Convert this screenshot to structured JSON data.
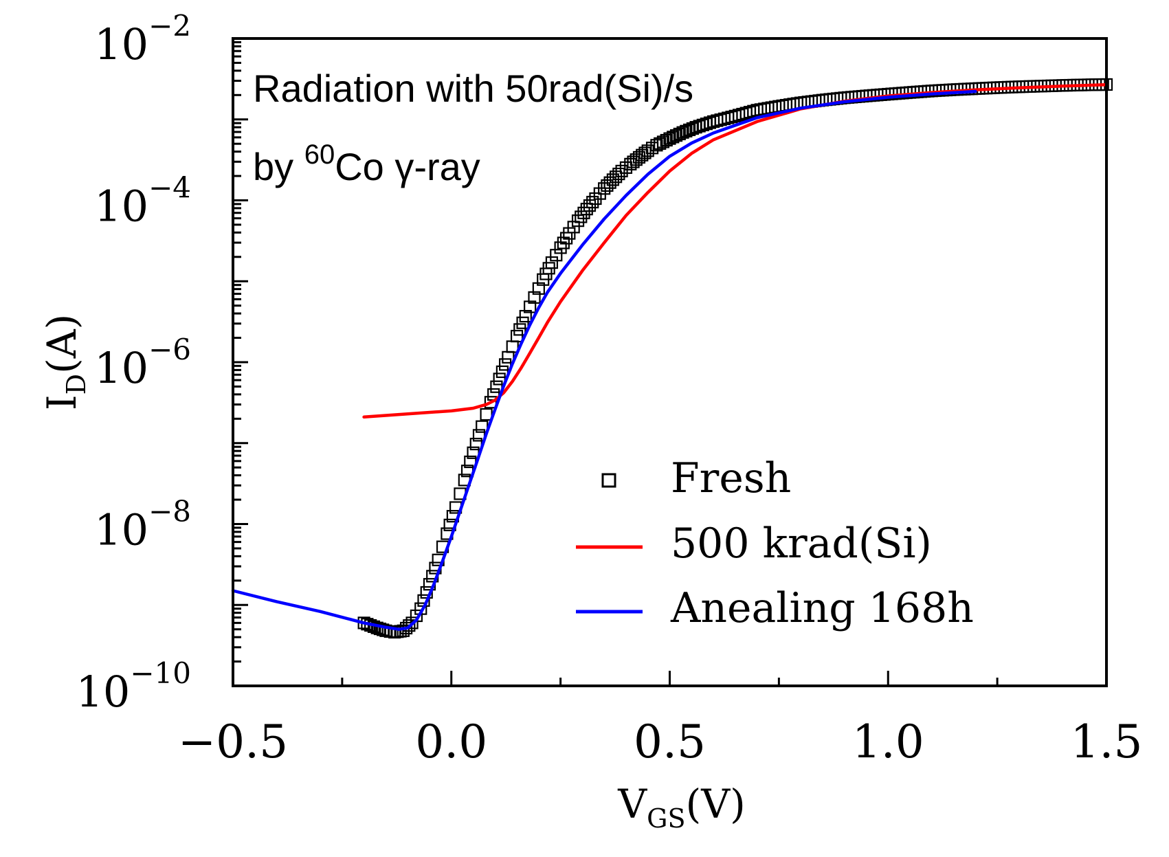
{
  "chart_data": {
    "type": "line",
    "xlabel": {
      "main": "V",
      "sub": "GS",
      "rest": "(V)"
    },
    "ylabel": {
      "main": "I",
      "sub": "D",
      "rest": "(A)"
    },
    "xlim": [
      -0.5,
      1.5
    ],
    "ylim": [
      1e-10,
      0.01
    ],
    "yscale": "log",
    "grid": false,
    "x_ticks": [
      {
        "value": -0.5,
        "label": "−0.5"
      },
      {
        "value": 0.0,
        "label": "0.0"
      },
      {
        "value": 0.5,
        "label": "0.5"
      },
      {
        "value": 1.0,
        "label": "1.0"
      },
      {
        "value": 1.5,
        "label": "1.5"
      }
    ],
    "y_ticks": [
      {
        "value": 1e-10,
        "base": "10",
        "exp": "−10"
      },
      {
        "value": 1e-08,
        "base": "10",
        "exp": "−8"
      },
      {
        "value": 1e-06,
        "base": "10",
        "exp": "−6"
      },
      {
        "value": 0.0001,
        "base": "10",
        "exp": "−4"
      },
      {
        "value": 0.01,
        "base": "10",
        "exp": "−2"
      }
    ],
    "annotation": {
      "line1": "Radiation with 50rad(Si)/s",
      "line2_pre": "by ",
      "line2_sup": "60",
      "line2_post": "Co γ-ray"
    },
    "legend_position": "bottom-right",
    "series": [
      {
        "name": "Fresh",
        "style": "open-square-markers",
        "color": "#000000",
        "x": [
          -0.2,
          -0.17,
          -0.15,
          -0.13,
          -0.11,
          -0.09,
          -0.07,
          -0.05,
          -0.03,
          -0.01,
          0.01,
          0.03,
          0.05,
          0.07,
          0.09,
          0.11,
          0.13,
          0.15,
          0.17,
          0.19,
          0.21,
          0.23,
          0.25,
          0.27,
          0.29,
          0.31,
          0.33,
          0.35,
          0.37,
          0.39,
          0.41,
          0.43,
          0.45,
          0.47,
          0.5,
          0.53,
          0.56,
          0.6,
          0.65,
          0.7,
          0.75,
          0.8,
          0.85,
          0.9,
          0.95,
          1.0,
          1.05,
          1.1,
          1.15,
          1.2,
          1.25,
          1.3,
          1.35,
          1.4,
          1.45,
          1.5
        ],
        "y": [
          6e-10,
          5.2e-10,
          4.8e-10,
          4.6e-10,
          4.8e-10,
          6e-10,
          9e-10,
          1.8e-09,
          3.6e-09,
          7.6e-09,
          1.6e-08,
          3.5e-08,
          7.6e-08,
          1.6e-07,
          3.2e-07,
          6.2e-07,
          1.15e-06,
          2.1e-06,
          3.7e-06,
          6.3e-06,
          1.05e-05,
          1.7e-05,
          2.6e-05,
          3.9e-05,
          5.6e-05,
          7.8e-05,
          0.000105,
          0.00014,
          0.00018,
          0.00023,
          0.00028,
          0.00034,
          0.00041,
          0.00048,
          0.00058,
          0.00069,
          0.0008,
          0.00094,
          0.0011,
          0.0013,
          0.00145,
          0.0016,
          0.00173,
          0.00185,
          0.00195,
          0.00205,
          0.00215,
          0.00225,
          0.00233,
          0.0024,
          0.00247,
          0.00253,
          0.00258,
          0.00263,
          0.00267,
          0.0027
        ]
      },
      {
        "name": "500 krad(Si)",
        "style": "line",
        "color": "#ff0000",
        "x": [
          -0.2,
          -0.1,
          0.0,
          0.05,
          0.08,
          0.1,
          0.12,
          0.14,
          0.16,
          0.18,
          0.2,
          0.22,
          0.25,
          0.3,
          0.35,
          0.4,
          0.45,
          0.5,
          0.55,
          0.6,
          0.7,
          0.8,
          0.9,
          1.0,
          1.1,
          1.2,
          1.3,
          1.4,
          1.5
        ],
        "y": [
          2.1e-07,
          2.3e-07,
          2.5e-07,
          2.7e-07,
          3e-07,
          3.4e-07,
          4.2e-07,
          5.8e-07,
          8.5e-07,
          1.3e-06,
          2e-06,
          3.1e-06,
          5.6e-06,
          1.35e-05,
          3e-05,
          6.5e-05,
          0.000125,
          0.00023,
          0.00038,
          0.00056,
          0.00094,
          0.00135,
          0.00168,
          0.00195,
          0.00215,
          0.00232,
          0.00246,
          0.00258,
          0.00268
        ]
      },
      {
        "name": "Anealing 168h",
        "style": "line",
        "color": "#0000ff",
        "x": [
          -0.5,
          -0.4,
          -0.3,
          -0.2,
          -0.15,
          -0.12,
          -0.1,
          -0.08,
          -0.06,
          -0.04,
          -0.02,
          0.0,
          0.02,
          0.04,
          0.06,
          0.08,
          0.1,
          0.12,
          0.14,
          0.16,
          0.18,
          0.2,
          0.22,
          0.25,
          0.3,
          0.35,
          0.4,
          0.45,
          0.5,
          0.55,
          0.6,
          0.7,
          0.8,
          0.9,
          1.0,
          1.1,
          1.2
        ],
        "y": [
          1.5e-09,
          1.1e-09,
          8.3e-10,
          6e-10,
          5.3e-10,
          5e-10,
          5.2e-10,
          6.5e-10,
          1e-09,
          1.8e-09,
          3.5e-09,
          7e-09,
          1.45e-08,
          3e-08,
          6.2e-08,
          1.3e-07,
          2.6e-07,
          5.1e-07,
          9.6e-07,
          1.7e-06,
          2.9e-06,
          4.7e-06,
          7.3e-06,
          1.25e-05,
          2.8e-05,
          5.9e-05,
          0.000115,
          0.00021,
          0.00035,
          0.00051,
          0.00068,
          0.00105,
          0.00138,
          0.00165,
          0.00188,
          0.00206,
          0.00222
        ]
      }
    ]
  }
}
